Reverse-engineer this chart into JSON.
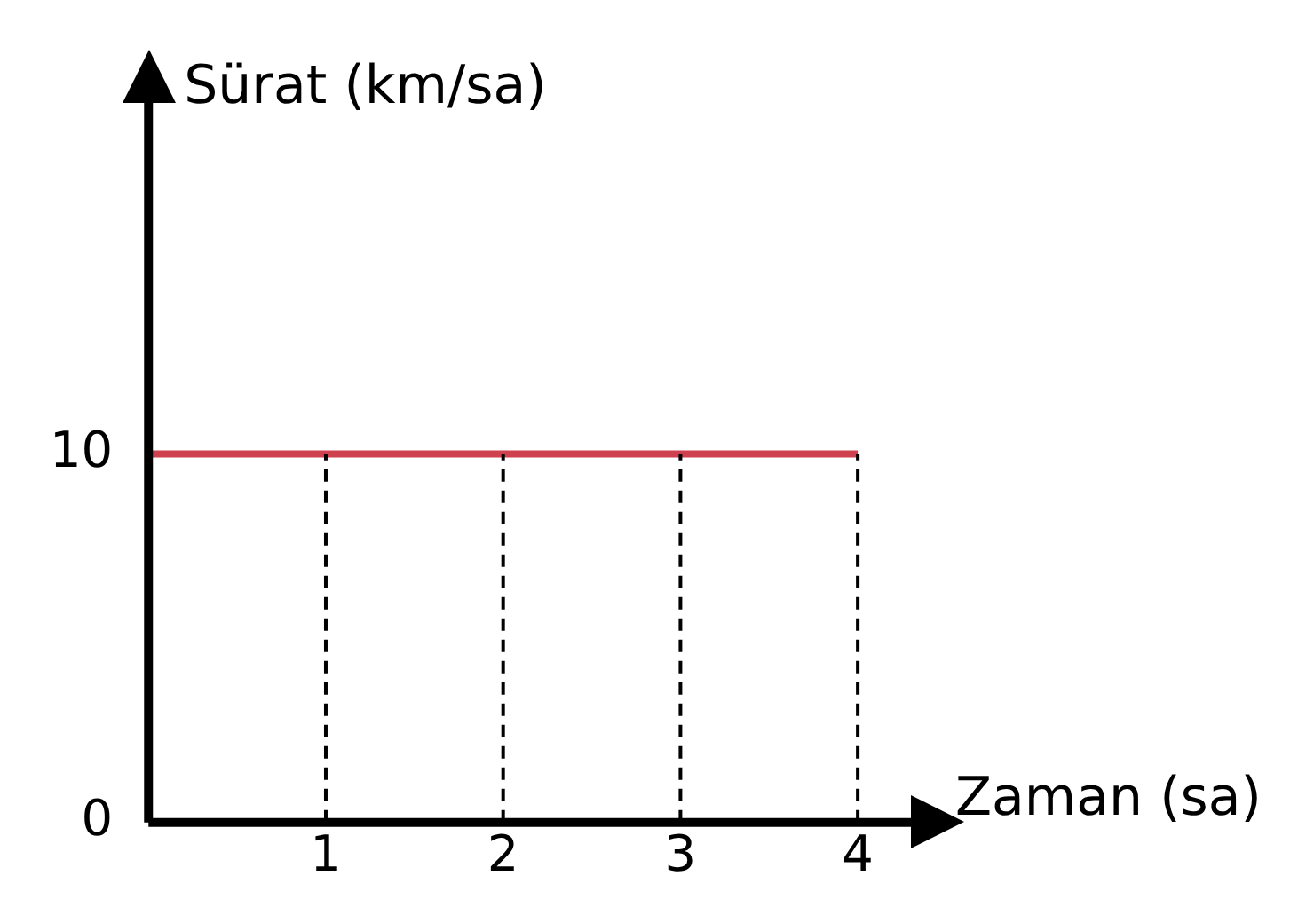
{
  "chart_data": {
    "type": "line",
    "xlabel": "Zaman (sa)",
    "ylabel": "Sürat (km/sa)",
    "x": [
      0,
      1,
      2,
      3,
      4
    ],
    "series": [
      {
        "color": "#d0414f",
        "values": [
          10,
          10,
          10,
          10,
          10
        ]
      }
    ],
    "xlim": [
      0,
      4.4
    ],
    "xticks": [
      {
        "value": 0,
        "label": null
      },
      1,
      2,
      3,
      4
    ],
    "ylim": [
      0,
      20
    ],
    "yticks": [
      0,
      10
    ],
    "ref_lines": [
      {
        "axis": "x",
        "value": 1,
        "color": "#000000",
        "line_style": "dashed"
      },
      {
        "axis": "x",
        "value": 2,
        "color": "#000000",
        "line_style": "dashed"
      },
      {
        "axis": "x",
        "value": 3,
        "color": "#000000",
        "line_style": "dashed"
      },
      {
        "axis": "x",
        "value": 4,
        "color": "#000000",
        "line_style": "dashed"
      }
    ],
    "grid": false,
    "legend": false,
    "marker": "none",
    "line_style": "solid"
  }
}
